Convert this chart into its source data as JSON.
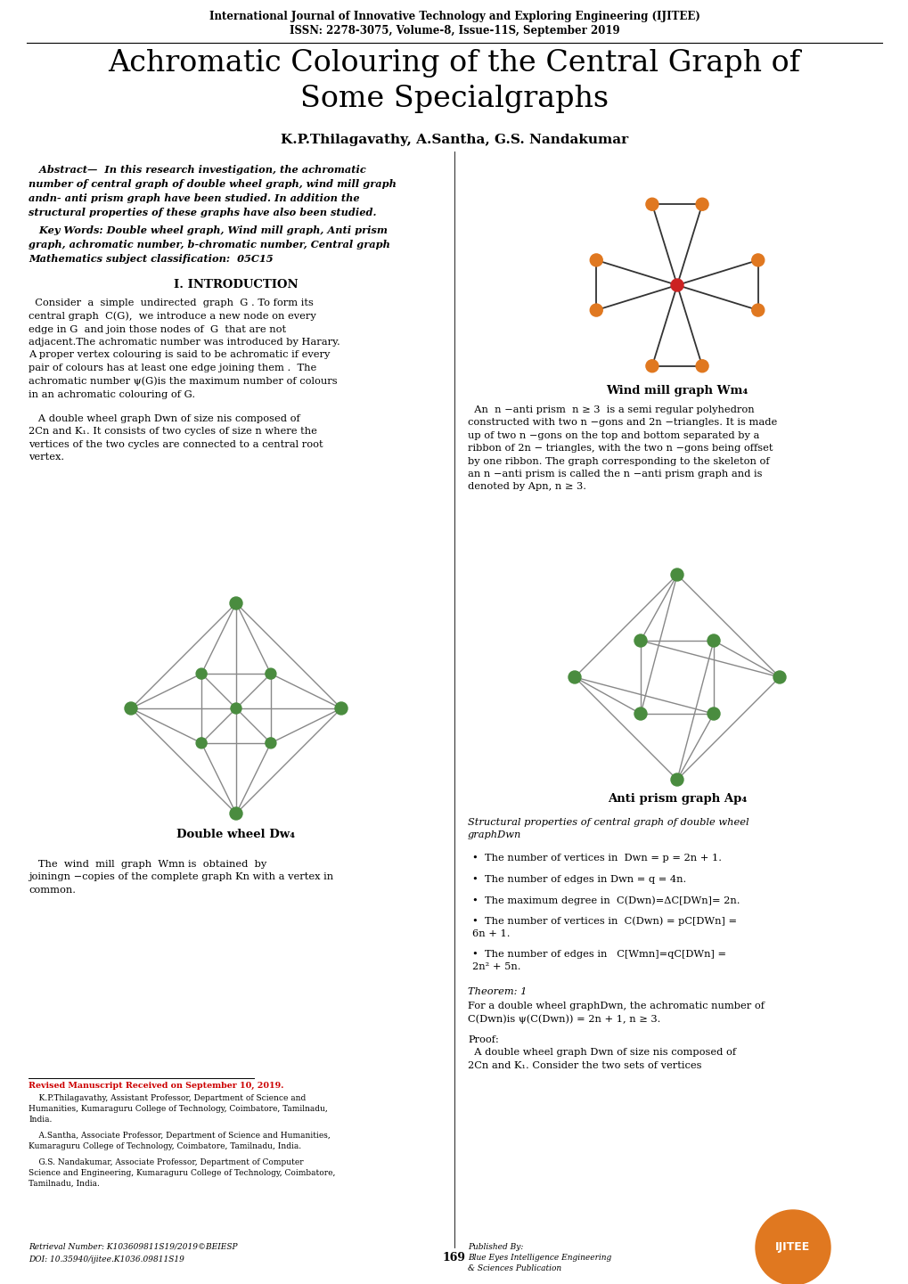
{
  "header_line1": "International Journal of Innovative Technology and Exploring Engineering (IJITEE)",
  "header_line2": "ISSN: 2278-3075, Volume-8, Issue-11S, September 2019",
  "title_line1": "Achromatic Colouring of the Central Graph of",
  "title_line2": "Some Specialgraphs",
  "authors": "K.P.Thilagavathy, A.Santha, G.S. Nandakumar",
  "windmill_caption": "Wind mill graph Wm₄",
  "dw_caption": "Double wheel Dw₄",
  "antiprism_caption": "Anti prism graph Ap₄",
  "section1_title": "I. INTRODUCTION",
  "theorem1": "Theorem: 1",
  "proof_label": "Proof:",
  "footnote_revised": "Revised Manuscript Received on September 10, 2019.",
  "retrieval": "Retrieval Number: K103609811S19/2019©BEIESP",
  "doi": "DOI: 10.35940/ijitee.K1036.09811S19",
  "page_num": "169",
  "bg_color": "#ffffff",
  "node_color_orange": "#e07820",
  "node_color_green": "#4a8c3f",
  "node_color_red": "#cc2222",
  "edge_color_dark": "#333333",
  "edge_color_light": "#888888"
}
